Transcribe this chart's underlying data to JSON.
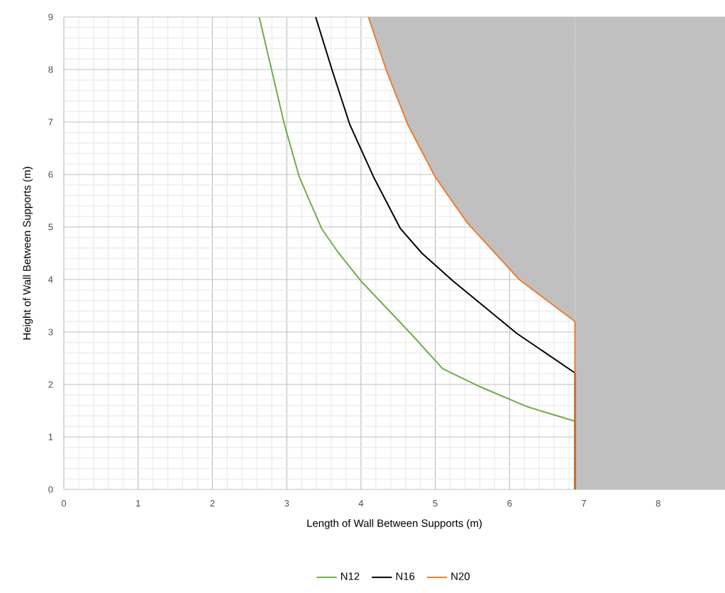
{
  "chart_data": {
    "type": "line",
    "xlabel": "Length of Wall Between Supports (m)",
    "ylabel": "Height of Wall Between Supports (m)",
    "xlim": [
      0,
      8.9
    ],
    "ylim": [
      0,
      9
    ],
    "xticks": [
      0,
      1,
      2,
      3,
      4,
      5,
      6,
      7,
      8
    ],
    "yticks": [
      0,
      1,
      2,
      3,
      4,
      5,
      6,
      7,
      8,
      9
    ],
    "grid": true,
    "legend": "bottom",
    "marker": "none",
    "line_style": "solid",
    "bands": [
      {
        "axis": "x",
        "from": 6.88,
        "to": 8.9,
        "color": "#c0c0c0"
      }
    ],
    "series": [
      {
        "name": "N12",
        "color": "#70ad47",
        "x": [
          2.63,
          2.97,
          3.17,
          3.47,
          3.68,
          4.0,
          4.67,
          5.1,
          5.58,
          6.25,
          6.88,
          6.88
        ],
        "values": [
          9,
          6.95,
          5.95,
          4.97,
          4.54,
          3.97,
          2.97,
          2.3,
          1.97,
          1.57,
          1.3,
          0
        ]
      },
      {
        "name": "N16",
        "color": "#000000",
        "x": [
          3.39,
          3.62,
          3.85,
          4.17,
          4.53,
          4.82,
          5.24,
          6.1,
          6.88,
          6.88
        ],
        "values": [
          9,
          7.95,
          6.95,
          5.95,
          4.97,
          4.5,
          3.97,
          2.97,
          2.22,
          0
        ]
      },
      {
        "name": "N20",
        "color": "#ed7d31",
        "x": [
          4.1,
          4.35,
          4.63,
          5.0,
          5.43,
          6.13,
          6.88,
          6.88
        ],
        "values": [
          9,
          7.95,
          6.95,
          5.95,
          5.08,
          4.0,
          3.2,
          0
        ],
        "lower": [
          9,
          7.95,
          6.95,
          5.95,
          5.08,
          4.0,
          3.2,
          0
        ],
        "upper": [
          9,
          9,
          9,
          9,
          9,
          9,
          9,
          9
        ]
      }
    ]
  }
}
